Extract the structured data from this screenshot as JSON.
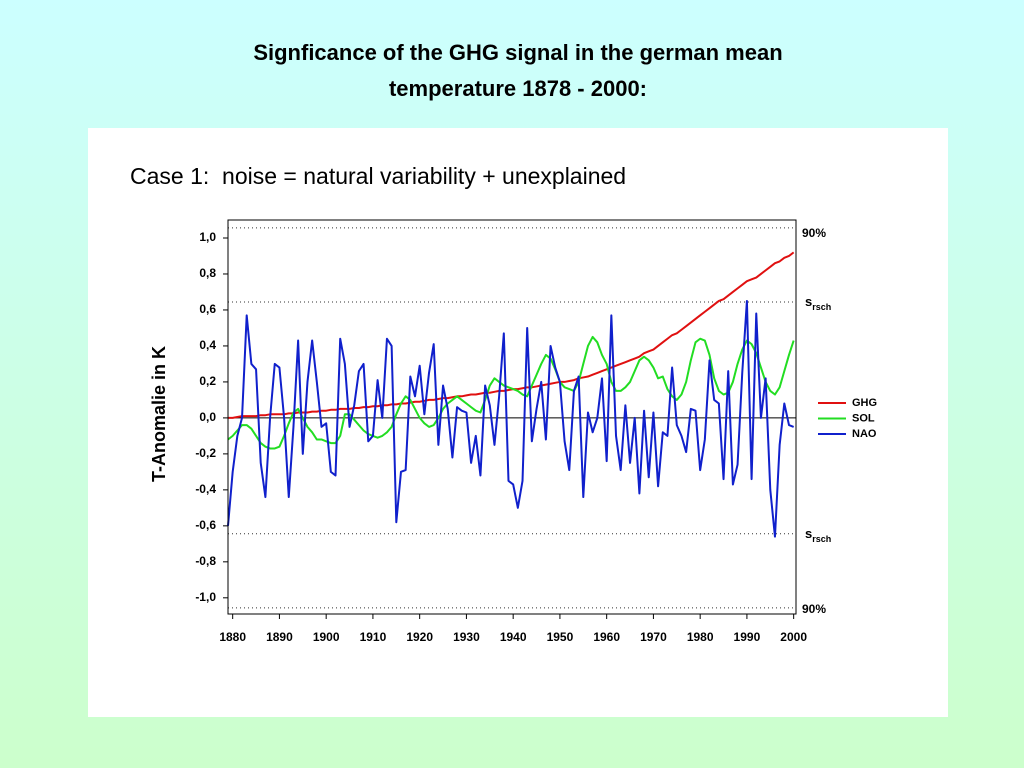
{
  "chart_data": {
    "type": "line",
    "title": [
      "Signficance of the GHG signal in the german mean",
      "temperature 1878 - 2000:"
    ],
    "subtitle": "Case 1:  noise = natural variability + unexplained",
    "y_label": "T-Anomalie in K",
    "xlim": [
      1879,
      2000.5
    ],
    "ylim": [
      -1.09,
      1.1
    ],
    "xticks": [
      1880,
      1890,
      1900,
      1910,
      1920,
      1930,
      1940,
      1950,
      1960,
      1970,
      1980,
      1990,
      2000
    ],
    "yticks": [
      {
        "value": 1.0,
        "label": "1,0"
      },
      {
        "value": 0.8,
        "label": "0,8"
      },
      {
        "value": 0.6,
        "label": "0,6"
      },
      {
        "value": 0.4,
        "label": "0,4"
      },
      {
        "value": 0.2,
        "label": "0,2"
      },
      {
        "value": 0,
        "label": "0,0"
      },
      {
        "value": -0.2,
        "label": "-0,2"
      },
      {
        "value": -0.4,
        "label": "-0,4"
      },
      {
        "value": -0.6,
        "label": "-0,6"
      },
      {
        "value": -0.8,
        "label": "-0,8"
      },
      {
        "value": -1.0,
        "label": "-1,0"
      }
    ],
    "reference_lines": [
      {
        "value": 1.056,
        "label": "90%"
      },
      {
        "value": 0.644,
        "label": "s",
        "subscript": "rsch"
      },
      {
        "value": -0.644,
        "label": "s",
        "subscript": "rsch"
      },
      {
        "value": -1.056,
        "label": "90%"
      }
    ],
    "legend": "right",
    "x": [
      1879,
      1880,
      1881,
      1882,
      1883,
      1884,
      1885,
      1886,
      1887,
      1888,
      1889,
      1890,
      1891,
      1892,
      1893,
      1894,
      1895,
      1896,
      1897,
      1898,
      1899,
      1900,
      1901,
      1902,
      1903,
      1904,
      1905,
      1906,
      1907,
      1908,
      1909,
      1910,
      1911,
      1912,
      1913,
      1914,
      1915,
      1916,
      1917,
      1918,
      1919,
      1920,
      1921,
      1922,
      1923,
      1924,
      1925,
      1926,
      1927,
      1928,
      1929,
      1930,
      1931,
      1932,
      1933,
      1934,
      1935,
      1936,
      1937,
      1938,
      1939,
      1940,
      1941,
      1942,
      1943,
      1944,
      1945,
      1946,
      1947,
      1948,
      1949,
      1950,
      1951,
      1952,
      1953,
      1954,
      1955,
      1956,
      1957,
      1958,
      1959,
      1960,
      1961,
      1962,
      1963,
      1964,
      1965,
      1966,
      1967,
      1968,
      1969,
      1970,
      1971,
      1972,
      1973,
      1974,
      1975,
      1976,
      1977,
      1978,
      1979,
      1980,
      1981,
      1982,
      1983,
      1984,
      1985,
      1986,
      1987,
      1988,
      1989,
      1990,
      1991,
      1992,
      1993,
      1994,
      1995,
      1996,
      1997,
      1998,
      1999,
      2000
    ],
    "series": [
      {
        "name": "GHG",
        "color": "#e01010",
        "values": [
          0,
          0,
          0.005,
          0.01,
          0.01,
          0.01,
          0.01,
          0.015,
          0.015,
          0.02,
          0.02,
          0.02,
          0.02,
          0.025,
          0.025,
          0.03,
          0.03,
          0.03,
          0.035,
          0.035,
          0.04,
          0.04,
          0.045,
          0.045,
          0.05,
          0.05,
          0.05,
          0.055,
          0.055,
          0.06,
          0.06,
          0.065,
          0.065,
          0.07,
          0.07,
          0.075,
          0.075,
          0.08,
          0.08,
          0.085,
          0.09,
          0.09,
          0.095,
          0.1,
          0.1,
          0.105,
          0.11,
          0.11,
          0.115,
          0.12,
          0.12,
          0.125,
          0.13,
          0.13,
          0.135,
          0.14,
          0.14,
          0.145,
          0.15,
          0.15,
          0.155,
          0.16,
          0.16,
          0.165,
          0.17,
          0.17,
          0.175,
          0.18,
          0.185,
          0.19,
          0.195,
          0.2,
          0.2,
          0.205,
          0.21,
          0.22,
          0.225,
          0.23,
          0.24,
          0.25,
          0.26,
          0.27,
          0.28,
          0.29,
          0.3,
          0.31,
          0.32,
          0.33,
          0.34,
          0.36,
          0.37,
          0.38,
          0.4,
          0.42,
          0.44,
          0.46,
          0.47,
          0.49,
          0.51,
          0.53,
          0.55,
          0.57,
          0.59,
          0.61,
          0.63,
          0.65,
          0.66,
          0.68,
          0.7,
          0.72,
          0.74,
          0.76,
          0.77,
          0.78,
          0.8,
          0.82,
          0.84,
          0.86,
          0.87,
          0.89,
          0.9,
          0.92
        ]
      },
      {
        "name": "SOL",
        "color": "#22dd22",
        "values": [
          -0.12,
          -0.1,
          -0.07,
          -0.04,
          -0.04,
          -0.06,
          -0.1,
          -0.14,
          -0.16,
          -0.17,
          -0.17,
          -0.16,
          -0.1,
          -0.03,
          0.03,
          0.05,
          0.0,
          -0.05,
          -0.08,
          -0.12,
          -0.12,
          -0.13,
          -0.14,
          -0.14,
          -0.1,
          0.02,
          0.02,
          -0.01,
          -0.04,
          -0.07,
          -0.09,
          -0.1,
          -0.11,
          -0.1,
          -0.08,
          -0.05,
          0.02,
          0.08,
          0.12,
          0.1,
          0.05,
          0.0,
          -0.03,
          -0.05,
          -0.04,
          0.0,
          0.05,
          0.08,
          0.1,
          0.12,
          0.1,
          0.08,
          0.06,
          0.04,
          0.03,
          0.1,
          0.18,
          0.22,
          0.2,
          0.18,
          0.17,
          0.16,
          0.15,
          0.13,
          0.12,
          0.18,
          0.24,
          0.3,
          0.35,
          0.33,
          0.27,
          0.2,
          0.17,
          0.16,
          0.15,
          0.2,
          0.3,
          0.4,
          0.45,
          0.42,
          0.35,
          0.3,
          0.2,
          0.15,
          0.15,
          0.17,
          0.2,
          0.26,
          0.32,
          0.34,
          0.32,
          0.28,
          0.22,
          0.23,
          0.16,
          0.12,
          0.1,
          0.13,
          0.2,
          0.32,
          0.42,
          0.44,
          0.43,
          0.35,
          0.22,
          0.15,
          0.13,
          0.14,
          0.2,
          0.3,
          0.38,
          0.43,
          0.41,
          0.36,
          0.28,
          0.2,
          0.15,
          0.13,
          0.17,
          0.26,
          0.35,
          0.43
        ]
      },
      {
        "name": "NAO",
        "color": "#1020cc",
        "values": [
          -0.6,
          -0.3,
          -0.1,
          0.0,
          0.57,
          0.3,
          0.27,
          -0.25,
          -0.44,
          0.0,
          0.3,
          0.28,
          0.0,
          -0.44,
          -0.05,
          0.43,
          -0.2,
          0.2,
          0.43,
          0.2,
          -0.05,
          -0.03,
          -0.3,
          -0.32,
          0.44,
          0.3,
          -0.05,
          0.07,
          0.26,
          0.3,
          -0.13,
          -0.1,
          0.21,
          0.0,
          0.44,
          0.4,
          -0.58,
          -0.3,
          -0.29,
          0.23,
          0.12,
          0.29,
          0.02,
          0.25,
          0.41,
          -0.15,
          0.18,
          0.05,
          -0.22,
          0.06,
          0.04,
          0.03,
          -0.25,
          -0.1,
          -0.32,
          0.18,
          0.07,
          -0.15,
          0.12,
          0.47,
          -0.35,
          -0.37,
          -0.5,
          -0.35,
          0.5,
          -0.13,
          0.05,
          0.2,
          -0.12,
          0.4,
          0.28,
          0.2,
          -0.13,
          -0.29,
          0.15,
          0.23,
          -0.44,
          0.03,
          -0.08,
          0.0,
          0.22,
          -0.24,
          0.57,
          -0.1,
          -0.29,
          0.07,
          -0.25,
          0.0,
          -0.42,
          0.04,
          -0.33,
          0.03,
          -0.38,
          -0.08,
          -0.1,
          0.28,
          -0.04,
          -0.1,
          -0.19,
          0.05,
          0.04,
          -0.29,
          -0.12,
          0.32,
          0.1,
          0.08,
          -0.34,
          0.26,
          -0.37,
          -0.26,
          0.25,
          0.65,
          -0.34,
          0.58,
          0.0,
          0.22,
          -0.4,
          -0.66,
          -0.15,
          0.08,
          -0.04,
          -0.05
        ]
      }
    ]
  }
}
